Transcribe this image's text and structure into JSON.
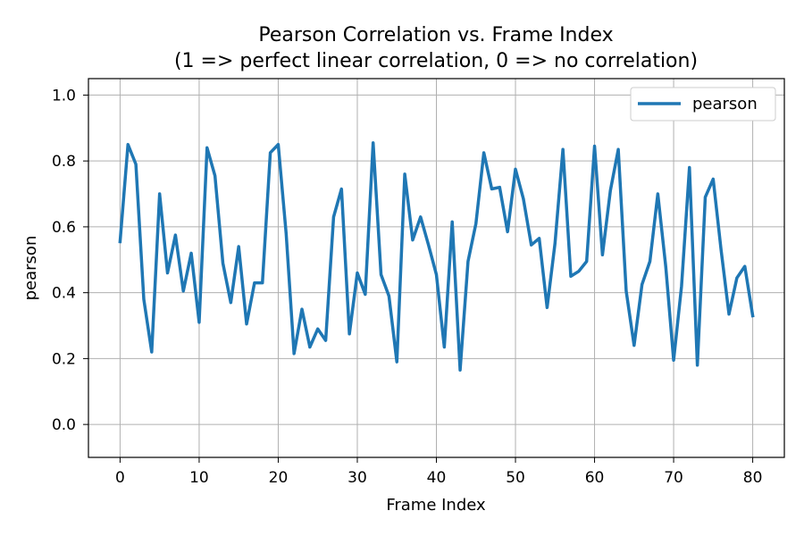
{
  "chart_data": {
    "type": "line",
    "title": "Pearson Correlation vs. Frame Index",
    "subtitle": "(1 => perfect linear correlation, 0 => no correlation)",
    "xlabel": "Frame Index",
    "ylabel": "pearson",
    "xlim": [
      -4,
      84
    ],
    "ylim": [
      -0.1,
      1.05
    ],
    "xticks": [
      0,
      10,
      20,
      30,
      40,
      50,
      60,
      70,
      80
    ],
    "yticks": [
      0.0,
      0.2,
      0.4,
      0.6,
      0.8,
      1.0
    ],
    "xtick_labels": [
      "0",
      "10",
      "20",
      "30",
      "40",
      "50",
      "60",
      "70",
      "80"
    ],
    "ytick_labels": [
      "0.0",
      "0.2",
      "0.4",
      "0.6",
      "0.8",
      "1.0"
    ],
    "grid": true,
    "legend_position": "top-right",
    "series": [
      {
        "name": "pearson",
        "color": "#1f77b4",
        "x": [
          0,
          1,
          2,
          3,
          4,
          5,
          6,
          7,
          8,
          9,
          10,
          11,
          12,
          13,
          14,
          15,
          16,
          17,
          18,
          19,
          20,
          21,
          22,
          23,
          24,
          25,
          26,
          27,
          28,
          29,
          30,
          31,
          32,
          33,
          34,
          35,
          36,
          37,
          38,
          39,
          40,
          41,
          42,
          43,
          44,
          45,
          46,
          47,
          48,
          49,
          50,
          51,
          52,
          53,
          54,
          55,
          56,
          57,
          58,
          59,
          60,
          61,
          62,
          63,
          64,
          65,
          66,
          67,
          68,
          69,
          70,
          71,
          72,
          73,
          74,
          75,
          76,
          77,
          78,
          79,
          80
        ],
        "values": [
          0.555,
          0.85,
          0.79,
          0.38,
          0.22,
          0.7,
          0.46,
          0.575,
          0.405,
          0.52,
          0.31,
          0.84,
          0.755,
          0.49,
          0.37,
          0.54,
          0.305,
          0.43,
          0.43,
          0.825,
          0.85,
          0.58,
          0.215,
          0.35,
          0.235,
          0.29,
          0.255,
          0.63,
          0.715,
          0.275,
          0.46,
          0.395,
          0.855,
          0.455,
          0.39,
          0.19,
          0.76,
          0.56,
          0.63,
          0.545,
          0.455,
          0.235,
          0.615,
          0.165,
          0.495,
          0.61,
          0.825,
          0.715,
          0.72,
          0.585,
          0.775,
          0.685,
          0.545,
          0.565,
          0.355,
          0.55,
          0.835,
          0.45,
          0.465,
          0.495,
          0.845,
          0.515,
          0.71,
          0.835,
          0.405,
          0.24,
          0.425,
          0.495,
          0.7,
          0.48,
          0.195,
          0.42,
          0.78,
          0.18,
          0.69,
          0.745,
          0.53,
          0.335,
          0.445,
          0.48,
          0.33
        ]
      }
    ]
  }
}
